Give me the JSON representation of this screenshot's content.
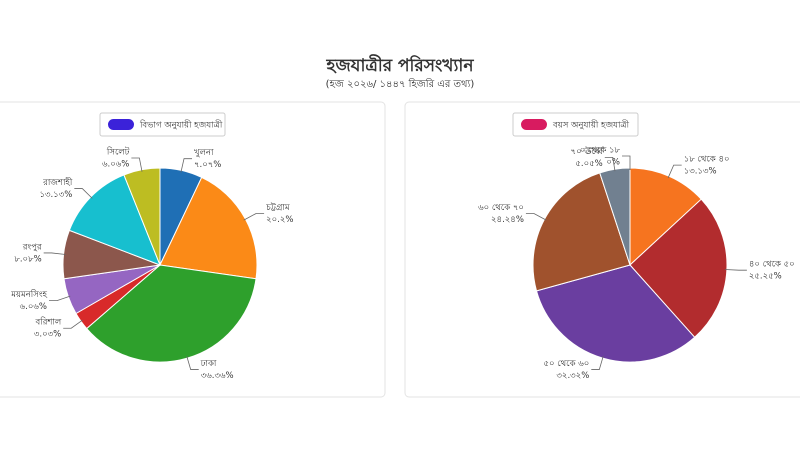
{
  "header": {
    "title": "হজযাত্রীর পরিসংখ্যান",
    "subtitle": "(হজ ২০২৬/ ১৪৪৭ হিজরি এর তথ্য)"
  },
  "chart_data": [
    {
      "type": "pie",
      "series_name": "বিভাগ অনুযায়ী হজযাত্রী",
      "legend_color": "#3b22d9",
      "categories": [
        "খুলনা",
        "চট্টগ্রাম",
        "ঢাকা",
        "বরিশাল",
        "ময়মনসিংহ",
        "রংপুর",
        "রাজশাহী",
        "সিলেট"
      ],
      "values": [
        7.07,
        20.2,
        36.36,
        3.03,
        6.06,
        8.08,
        13.13,
        6.06
      ],
      "value_labels": [
        "৭.০৭%",
        "২০.২%",
        "৩৬.৩৬%",
        "৩.০৩%",
        "৬.০৬%",
        "৮.০৮%",
        "১৩.১৩%",
        "৬.০৬%"
      ],
      "colors": [
        "#1f6fb5",
        "#fb8a17",
        "#2ea02c",
        "#d82a2a",
        "#9566c2",
        "#8c574c",
        "#17bfcf",
        "#bdbd22"
      ]
    },
    {
      "type": "pie",
      "series_name": "বয়স অনুযায়ী হজযাত্রী",
      "legend_color": "#d81b60",
      "categories": [
        "১৮ থেকে ৪০",
        "৪০ থেকে ৫০",
        "৫০ থেকে ৬০",
        "৬০ থেকে ৭০",
        "৭০ ঊর্ধ্বে",
        "০ থেকে ১৮"
      ],
      "values": [
        13.13,
        25.25,
        32.32,
        24.24,
        5.05,
        0
      ],
      "value_labels": [
        "১৩.১৩%",
        "২৫.২৫%",
        "৩২.৩২%",
        "২৪.২৪%",
        "৫.০৫%",
        "০%"
      ],
      "colors": [
        "#f6741f",
        "#b22c2e",
        "#6a3ea0",
        "#a0522d",
        "#718090",
        "#9e9e9e"
      ]
    }
  ]
}
